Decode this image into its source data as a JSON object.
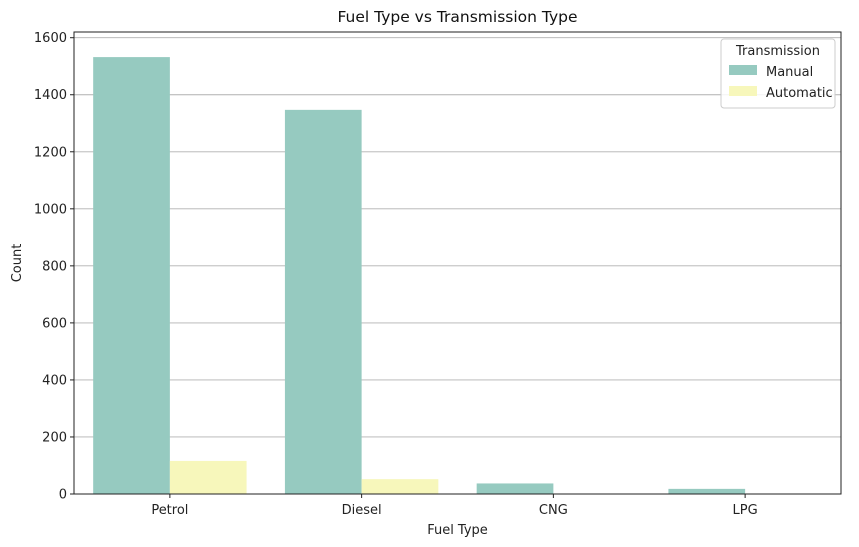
{
  "chart_data": {
    "type": "bar",
    "title": "Fuel Type vs Transmission Type",
    "xlabel": "Fuel Type",
    "ylabel": "Count",
    "categories": [
      "Petrol",
      "Diesel",
      "CNG",
      "LPG"
    ],
    "series": [
      {
        "name": "Manual",
        "values": [
          1532,
          1347,
          37,
          18
        ],
        "color": "#96cac0"
      },
      {
        "name": "Automatic",
        "values": [
          116,
          52,
          0,
          0
        ],
        "color": "#f7f7bb"
      }
    ],
    "ylim": [
      0,
      1620
    ],
    "yticks": [
      0,
      200,
      400,
      600,
      800,
      1000,
      1200,
      1400,
      1600
    ],
    "ytick_labels": [
      "0",
      "200",
      "400",
      "600",
      "800",
      "1000",
      "1200",
      "1400",
      "1600"
    ],
    "grid": "y",
    "legend": {
      "title": "Transmission",
      "placement": "top-right"
    }
  }
}
